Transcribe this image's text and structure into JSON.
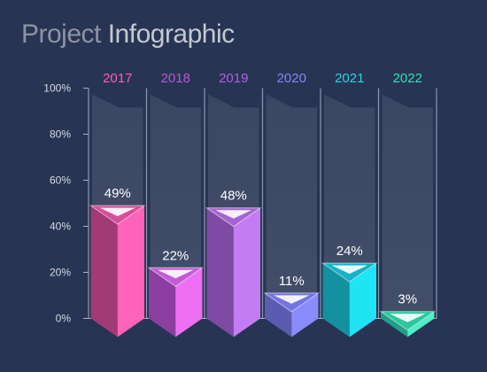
{
  "title": {
    "part1": "Project",
    "part2": "Infographic"
  },
  "chart_data": {
    "type": "bar",
    "title": "Project Infographic",
    "categories": [
      "2017",
      "2018",
      "2019",
      "2020",
      "2021",
      "2022"
    ],
    "values": [
      49,
      22,
      48,
      11,
      24,
      3
    ],
    "value_labels": [
      "49%",
      "22%",
      "48%",
      "11%",
      "24%",
      "3%"
    ],
    "ylim": [
      0,
      100
    ],
    "yticks": [
      0,
      20,
      40,
      60,
      80,
      100
    ],
    "ytick_labels": [
      "0%",
      "20%",
      "40%",
      "60%",
      "80%",
      "100%"
    ],
    "grid": false,
    "colors": [
      {
        "category": "#ff5fb0",
        "left": "#a13a77",
        "right": "#ff63b9",
        "top": "#d94d9a"
      },
      {
        "category": "#bb57cf",
        "left": "#8b3fa1",
        "right": "#ec70f1",
        "top": "#c45bd9"
      },
      {
        "category": "#b061e4",
        "left": "#7e4aa4",
        "right": "#c47cf4",
        "top": "#a464d4"
      },
      {
        "category": "#8787ef",
        "left": "#5b5cb1",
        "right": "#8a8bfd",
        "top": "#7374e0"
      },
      {
        "category": "#2ed3e4",
        "left": "#13919e",
        "right": "#1ee4f4",
        "top": "#13b4c6"
      },
      {
        "category": "#37dfb4",
        "left": "#1e9f86",
        "right": "#4bf0c6",
        "top": "#2bc79f"
      }
    ]
  }
}
